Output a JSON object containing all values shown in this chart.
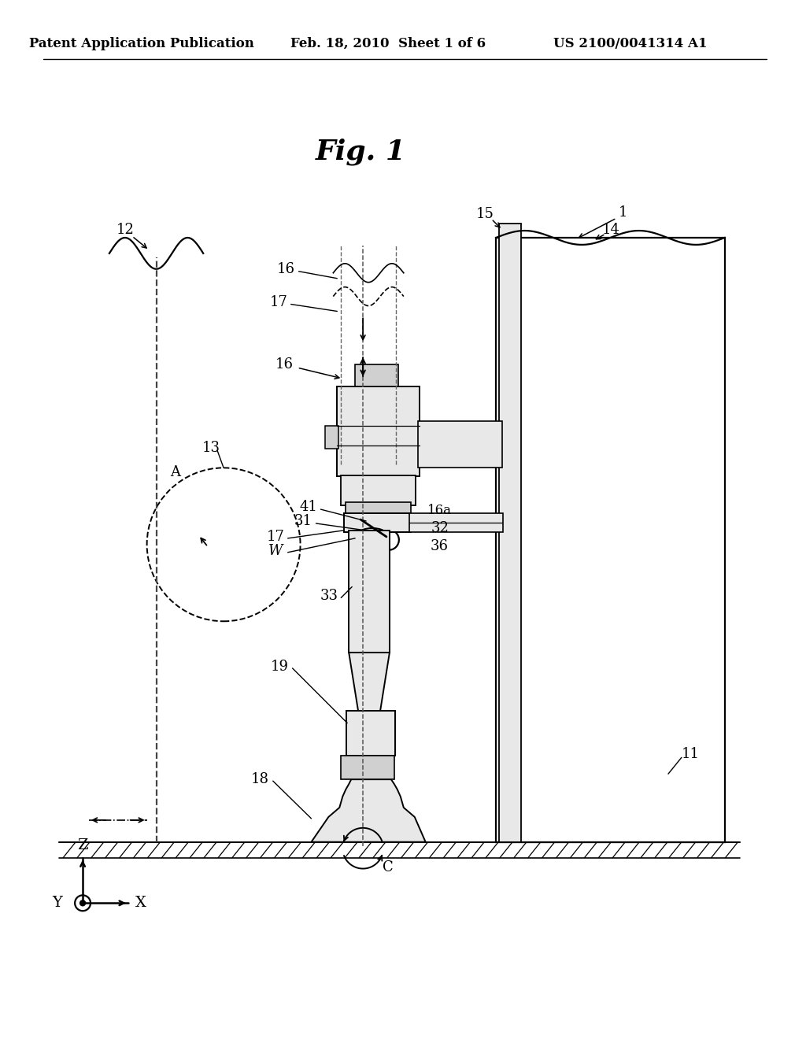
{
  "bg_color": "#ffffff",
  "header_left": "Patent Application Publication",
  "header_mid": "Feb. 18, 2010  Sheet 1 of 6",
  "header_right": "US 2100/0041314 A1",
  "fig_title": "Fig. 1",
  "line_color": "#000000",
  "light_gray": "#e8e8e8",
  "mid_gray": "#d0d0d0",
  "dark_gray": "#b8b8b8"
}
